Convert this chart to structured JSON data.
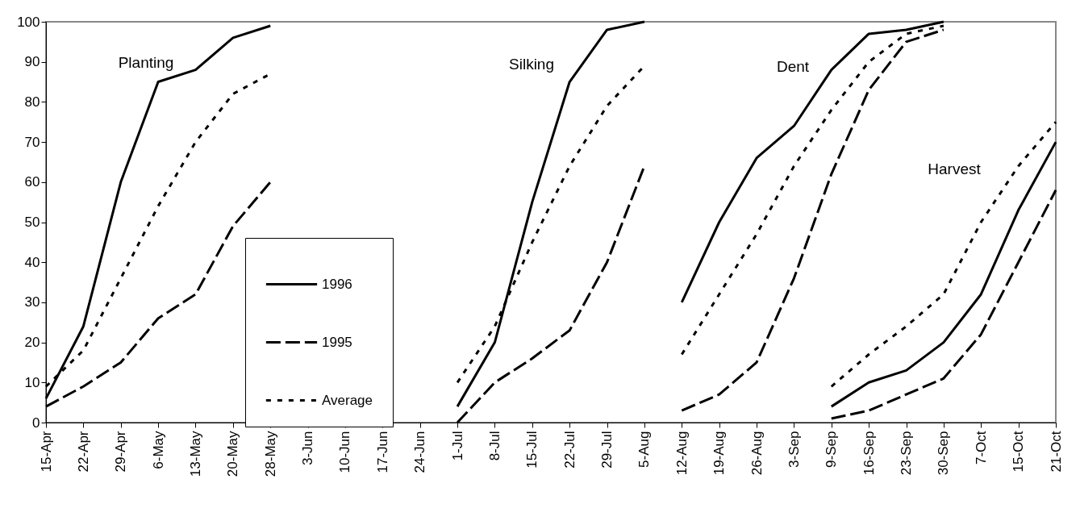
{
  "chart_data": {
    "type": "line",
    "categories": [
      "15-Apr",
      "22-Apr",
      "29-Apr",
      "6-May",
      "13-May",
      "20-May",
      "28-May",
      "3-Jun",
      "10-Jun",
      "17-Jun",
      "24-Jun",
      "1-Jul",
      "8-Jul",
      "15-Jul",
      "22-Jul",
      "29-Jul",
      "5-Aug",
      "12-Aug",
      "19-Aug",
      "26-Aug",
      "3-Sep",
      "9-Sep",
      "16-Sep",
      "23-Sep",
      "30-Sep",
      "7-Oct",
      "15-Oct",
      "21-Oct"
    ],
    "series": [
      {
        "name": "1996",
        "color": "#000000",
        "line_style": "solid",
        "values": [
          6,
          24,
          60,
          85,
          88,
          96,
          99,
          null,
          null,
          null,
          null,
          null,
          null,
          null,
          null,
          null,
          null,
          null,
          null,
          null,
          null,
          null,
          null,
          null,
          null,
          null,
          null,
          null
        ]
      },
      {
        "name": "1995",
        "color": "#000000",
        "line_style": "dashed",
        "values": [
          4,
          9,
          15,
          26,
          32,
          49,
          60,
          null,
          null,
          null,
          null,
          null,
          null,
          null,
          null,
          null,
          null,
          null,
          null,
          null,
          null,
          null,
          null,
          null,
          null,
          null,
          null,
          null
        ]
      },
      {
        "name": "Average",
        "color": "#000000",
        "line_style": "dotted",
        "values": [
          9,
          18,
          36,
          54,
          70,
          82,
          87,
          null,
          null,
          null,
          null,
          null,
          null,
          null,
          null,
          null,
          null,
          null,
          null,
          null,
          null,
          null,
          null,
          null,
          null,
          null,
          null,
          null
        ]
      },
      {
        "color": "#000000",
        "line_style": "solid",
        "values": [
          null,
          null,
          null,
          null,
          null,
          null,
          null,
          null,
          null,
          null,
          null,
          4,
          20,
          55,
          85,
          98,
          100,
          null,
          null,
          null,
          null,
          null,
          null,
          null,
          null,
          null,
          null,
          null
        ]
      },
      {
        "color": "#000000",
        "line_style": "dashed",
        "values": [
          null,
          null,
          null,
          null,
          null,
          null,
          null,
          null,
          null,
          null,
          null,
          0,
          10,
          16,
          23,
          40,
          64,
          null,
          null,
          null,
          null,
          null,
          null,
          null,
          null,
          null,
          null,
          null
        ]
      },
      {
        "color": "#000000",
        "line_style": "dotted",
        "values": [
          null,
          null,
          null,
          null,
          null,
          null,
          null,
          null,
          null,
          null,
          null,
          10,
          24,
          45,
          64,
          79,
          89,
          null,
          null,
          null,
          null,
          null,
          null,
          null,
          null,
          null,
          null,
          null
        ]
      },
      {
        "color": "#000000",
        "line_style": "solid",
        "values": [
          null,
          null,
          null,
          null,
          null,
          null,
          null,
          null,
          null,
          null,
          null,
          null,
          null,
          null,
          null,
          null,
          null,
          30,
          50,
          66,
          74,
          88,
          97,
          98,
          100,
          null,
          null,
          null
        ]
      },
      {
        "color": "#000000",
        "line_style": "dashed",
        "values": [
          null,
          null,
          null,
          null,
          null,
          null,
          null,
          null,
          null,
          null,
          null,
          null,
          null,
          null,
          null,
          null,
          null,
          3,
          7,
          15,
          36,
          62,
          83,
          95,
          98,
          null,
          null,
          null
        ]
      },
      {
        "color": "#000000",
        "line_style": "dotted",
        "values": [
          null,
          null,
          null,
          null,
          null,
          null,
          null,
          null,
          null,
          null,
          null,
          null,
          null,
          null,
          null,
          null,
          null,
          17,
          32,
          47,
          64,
          78,
          90,
          97,
          99,
          null,
          null,
          null
        ]
      },
      {
        "color": "#000000",
        "line_style": "solid",
        "values": [
          null,
          null,
          null,
          null,
          null,
          null,
          null,
          null,
          null,
          null,
          null,
          null,
          null,
          null,
          null,
          null,
          null,
          null,
          null,
          null,
          null,
          4,
          10,
          13,
          20,
          32,
          53,
          70
        ]
      },
      {
        "color": "#000000",
        "line_style": "dashed",
        "values": [
          null,
          null,
          null,
          null,
          null,
          null,
          null,
          null,
          null,
          null,
          null,
          null,
          null,
          null,
          null,
          null,
          null,
          null,
          null,
          null,
          null,
          1,
          3,
          7,
          11,
          22,
          40,
          58
        ]
      },
      {
        "color": "#000000",
        "line_style": "dotted",
        "values": [
          null,
          null,
          null,
          null,
          null,
          null,
          null,
          null,
          null,
          null,
          null,
          null,
          null,
          null,
          null,
          null,
          null,
          null,
          null,
          null,
          null,
          9,
          17,
          24,
          32,
          50,
          64,
          75
        ]
      }
    ],
    "annotations": [
      "Planting",
      "Silking",
      "Dent",
      "Harvest"
    ],
    "ylim": [
      0,
      100
    ],
    "yticks": [
      0,
      10,
      20,
      30,
      40,
      50,
      60,
      70,
      80,
      90,
      100
    ],
    "grid": false,
    "legend": "bottom left"
  }
}
